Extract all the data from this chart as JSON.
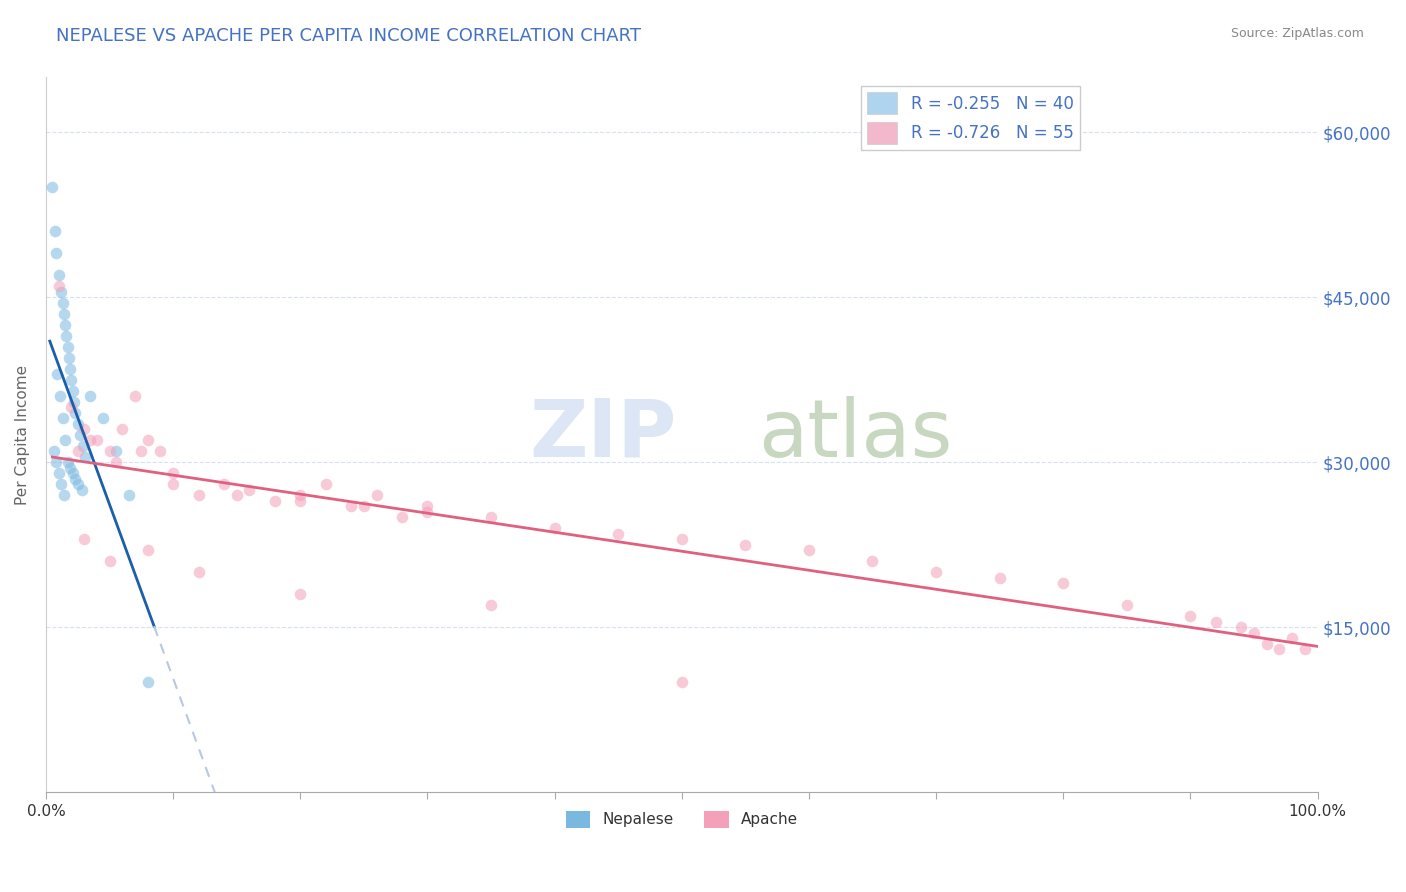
{
  "title": "NEPALESE VS APACHE PER CAPITA INCOME CORRELATION CHART",
  "source": "Source: ZipAtlas.com",
  "ylabel": "Per Capita Income",
  "xlim": [
    0,
    100
  ],
  "ylim": [
    0,
    65000
  ],
  "yticks": [
    0,
    15000,
    30000,
    45000,
    60000
  ],
  "ytick_labels": [
    "",
    "$15,000",
    "$30,000",
    "$45,000",
    "$60,000"
  ],
  "nepalese_color": "#7ab8e0",
  "apache_color": "#f4a0b8",
  "nepalese_trend_color": "#1a5fa8",
  "apache_trend_color": "#e06080",
  "dashed_color": "#b8c8e0",
  "bg_color": "#ffffff",
  "grid_color": "#d8dff0",
  "marker_size": 70,
  "marker_alpha": 0.55,
  "nepalese_x": [
    0.5,
    0.7,
    0.8,
    1.0,
    1.2,
    1.3,
    1.4,
    1.5,
    1.6,
    1.7,
    1.8,
    1.9,
    2.0,
    2.1,
    2.2,
    2.3,
    2.5,
    2.7,
    2.9,
    3.1,
    0.9,
    1.1,
    1.3,
    1.5,
    1.7,
    1.9,
    2.1,
    2.3,
    2.5,
    2.8,
    0.6,
    0.8,
    1.0,
    1.2,
    1.4,
    3.5,
    4.5,
    5.5,
    6.5,
    8.0
  ],
  "nepalese_y": [
    55000,
    51000,
    49000,
    47000,
    45500,
    44500,
    43500,
    42500,
    41500,
    40500,
    39500,
    38500,
    37500,
    36500,
    35500,
    34500,
    33500,
    32500,
    31500,
    30500,
    38000,
    36000,
    34000,
    32000,
    30000,
    29500,
    29000,
    28500,
    28000,
    27500,
    31000,
    30000,
    29000,
    28000,
    27000,
    36000,
    34000,
    31000,
    27000,
    10000
  ],
  "apache_x": [
    1.0,
    2.0,
    3.0,
    4.0,
    5.0,
    6.0,
    7.0,
    8.0,
    9.0,
    10.0,
    12.0,
    14.0,
    16.0,
    18.0,
    20.0,
    22.0,
    24.0,
    26.0,
    28.0,
    30.0,
    2.5,
    3.5,
    5.5,
    7.5,
    10.0,
    15.0,
    20.0,
    25.0,
    30.0,
    35.0,
    40.0,
    45.0,
    50.0,
    55.0,
    60.0,
    65.0,
    70.0,
    75.0,
    80.0,
    85.0,
    90.0,
    92.0,
    94.0,
    95.0,
    96.0,
    97.0,
    98.0,
    99.0,
    3.0,
    5.0,
    8.0,
    12.0,
    20.0,
    35.0,
    50.0
  ],
  "apache_y": [
    46000,
    35000,
    33000,
    32000,
    31000,
    33000,
    36000,
    32000,
    31000,
    28000,
    27000,
    28000,
    27500,
    26500,
    27000,
    28000,
    26000,
    27000,
    25000,
    26000,
    31000,
    32000,
    30000,
    31000,
    29000,
    27000,
    26500,
    26000,
    25500,
    25000,
    24000,
    23500,
    23000,
    22500,
    22000,
    21000,
    20000,
    19500,
    19000,
    17000,
    16000,
    15500,
    15000,
    14500,
    13500,
    13000,
    14000,
    13000,
    23000,
    21000,
    22000,
    20000,
    18000,
    17000,
    10000
  ],
  "legend_r1": "R = -0.255   N = 40",
  "legend_r2": "R = -0.726   N = 55",
  "legend_color1": "#aed4f0",
  "legend_color2": "#f4b8cc",
  "legend_text_color": "#4472c4",
  "bottom_legend_labels": [
    "Nepalese",
    "Apache"
  ],
  "title_color": "#4472c4",
  "source_color": "#888888",
  "ylabel_color": "#666666"
}
